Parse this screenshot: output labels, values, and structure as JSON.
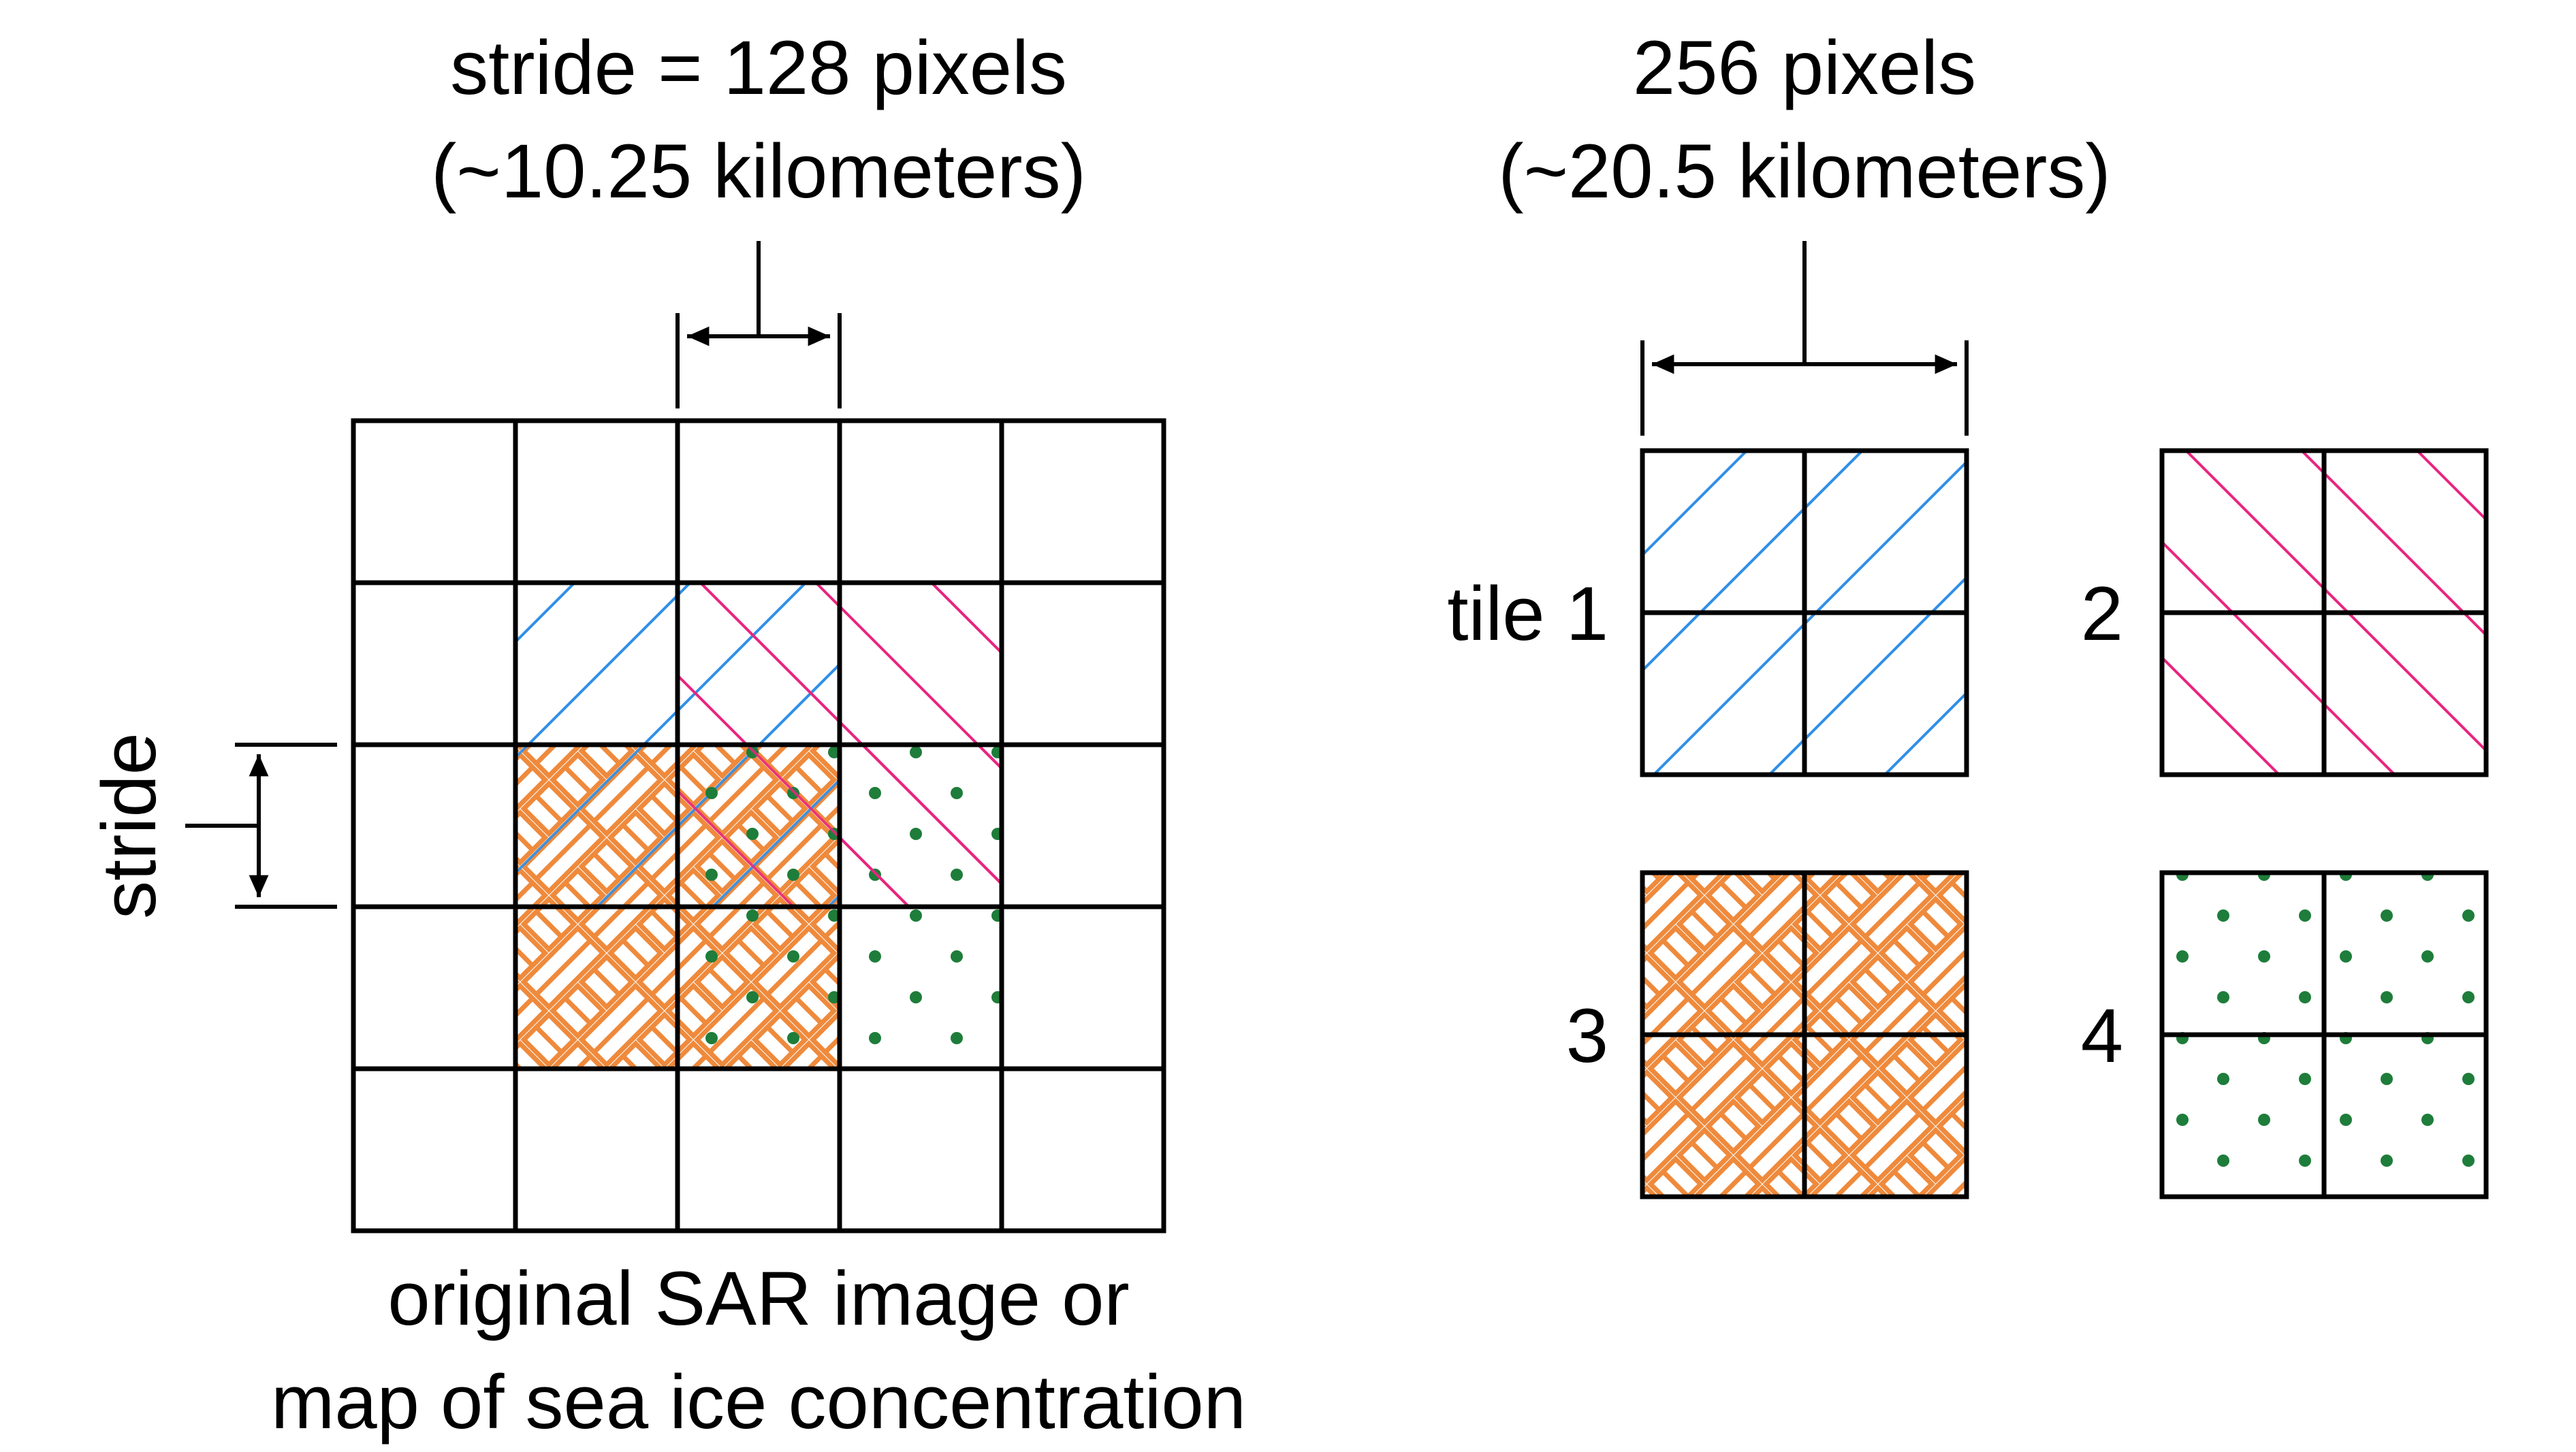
{
  "labels": {
    "stride_title_line1": "stride = 128 pixels",
    "stride_title_line2": "(~10.25 kilometers)",
    "tile_size_line1": "256 pixels",
    "tile_size_line2": "(~20.5 kilometers)",
    "stride_side": "stride",
    "caption_line1": "original SAR image or",
    "caption_line2": "map of sea ice concentration"
  },
  "tiles": [
    {
      "label": "tile 1",
      "pattern": "blue-backslash-hatch"
    },
    {
      "label": "2",
      "pattern": "pink-slash-hatch"
    },
    {
      "label": "3",
      "pattern": "orange-basketweave"
    },
    {
      "label": "4",
      "pattern": "green-dots"
    }
  ],
  "colors": {
    "blue": "#2f8fe8",
    "pink": "#e8257f",
    "orange": "#ef8a3c",
    "green": "#1e7d3a",
    "line": "#000000"
  }
}
